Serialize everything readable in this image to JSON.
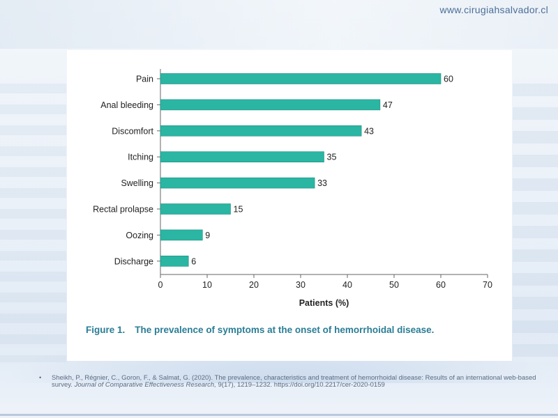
{
  "header": {
    "site_url": "www.cirugiahsalvador.cl"
  },
  "figure": {
    "label": "Figure 1.",
    "title": "The prevalence of symptoms at the onset of hemorrhoidal disease."
  },
  "chart_data": {
    "type": "bar",
    "orientation": "horizontal",
    "categories": [
      "Pain",
      "Anal bleeding",
      "Discomfort",
      "Itching",
      "Swelling",
      "Rectal prolapse",
      "Oozing",
      "Discharge"
    ],
    "values": [
      60,
      47,
      43,
      35,
      33,
      15,
      9,
      6
    ],
    "data_labels": [
      "60",
      "47",
      "43",
      "35",
      "33",
      "15",
      "9",
      "6"
    ],
    "xlabel": "Patients (%)",
    "ylabel": "",
    "xlim": [
      0,
      70
    ],
    "xticks": [
      0,
      10,
      20,
      30,
      40,
      50,
      60,
      70
    ],
    "grid": false,
    "bar_color": "#2bb5a3"
  },
  "reference": {
    "bullet": "•",
    "authors": "Sheikh, P., Régnier, C., Goron, F., & Salmat, G. (2020). The prevalence, characteristics and treatment of hemorrhoidal disease: Results of an international web-based survey.",
    "journal": "Journal of Comparative Effectiveness Research,",
    "details": "9(17), 1219–1232. https://doi.org/10.2217/cer-2020-0159"
  }
}
